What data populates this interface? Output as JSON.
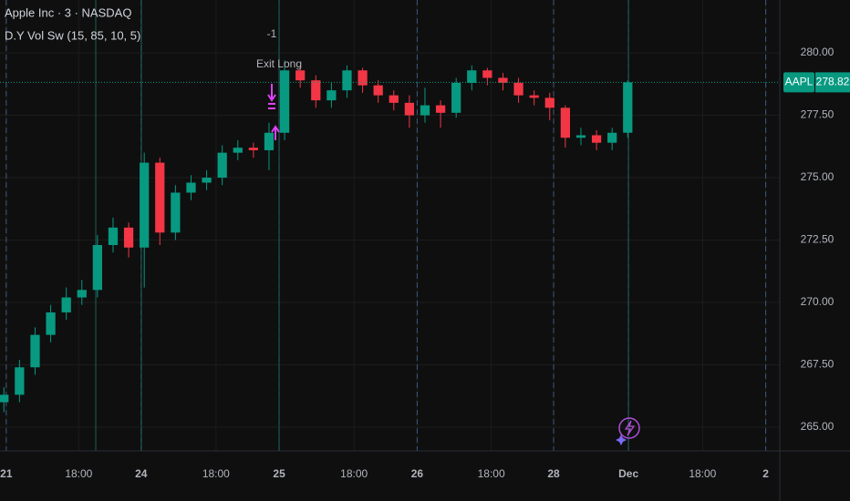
{
  "chart_data": {
    "type": "candlestick",
    "title": "Apple Inc · 3 · NASDAQ",
    "indicator": "D.Y Vol Sw (15, 85, 10, 5)",
    "annotations": [
      "-1",
      "Exit Long"
    ],
    "symbol": "AAPL",
    "last_price": 278.82,
    "up_color": "#089981",
    "down_color": "#f23645",
    "grid": true,
    "x": [
      0.5,
      2.5,
      4.5,
      6.5,
      8.5,
      10.5,
      12.5,
      14.5,
      16.5,
      18.5,
      20.5,
      22.5,
      24.5,
      26.5,
      28.5,
      30.5,
      32.5,
      34.5,
      36.5,
      38.5,
      40.5,
      42.5,
      44.5,
      46.5,
      48.5,
      50.5,
      52.5,
      54.5,
      56.5,
      58.5,
      60.5,
      62.5,
      64.5,
      66.5,
      68.5,
      70.5,
      72.5,
      74.5,
      76.5,
      78.5,
      80.5
    ],
    "open": [
      266.0,
      266.3,
      267.4,
      268.7,
      269.6,
      270.2,
      270.5,
      272.3,
      273.0,
      272.2,
      275.6,
      272.8,
      274.4,
      274.8,
      275.0,
      276.0,
      276.2,
      276.1,
      276.8,
      279.3,
      278.9,
      278.1,
      278.5,
      279.3,
      278.7,
      278.3,
      278.0,
      277.5,
      277.9,
      277.6,
      278.8,
      279.3,
      279.0,
      278.8,
      278.3,
      278.2,
      277.8,
      276.6,
      276.7,
      276.4,
      276.8
    ],
    "high": [
      266.6,
      267.7,
      269.0,
      269.9,
      270.6,
      270.9,
      272.7,
      273.4,
      273.2,
      276.0,
      275.8,
      274.7,
      275.1,
      275.3,
      276.3,
      276.5,
      276.4,
      277.2,
      279.7,
      279.5,
      279.1,
      278.8,
      279.5,
      279.4,
      278.9,
      278.5,
      278.3,
      278.6,
      278.1,
      279.0,
      279.5,
      279.4,
      279.2,
      279.0,
      278.5,
      278.4,
      277.9,
      277.0,
      276.9,
      277.0,
      278.9
    ],
    "low": [
      265.6,
      266.0,
      267.1,
      268.4,
      269.3,
      269.9,
      270.2,
      272.0,
      271.8,
      270.6,
      272.3,
      272.5,
      274.1,
      274.5,
      274.7,
      275.7,
      275.8,
      275.3,
      276.5,
      278.6,
      277.8,
      277.8,
      278.2,
      278.4,
      278.0,
      277.7,
      277.0,
      277.2,
      277.0,
      277.4,
      278.5,
      278.7,
      278.5,
      278.0,
      277.9,
      277.3,
      276.2,
      276.3,
      276.1,
      276.1,
      276.6
    ],
    "close": [
      266.3,
      267.4,
      268.7,
      269.6,
      270.2,
      270.5,
      272.3,
      273.0,
      272.2,
      275.6,
      272.8,
      274.4,
      274.8,
      275.0,
      276.0,
      276.2,
      276.1,
      276.8,
      279.3,
      278.9,
      278.1,
      278.5,
      279.3,
      278.7,
      278.3,
      278.0,
      277.5,
      277.9,
      277.6,
      278.8,
      279.3,
      279.0,
      278.8,
      278.3,
      278.2,
      277.8,
      276.6,
      276.7,
      276.4,
      276.8,
      278.82
    ],
    "xlim": [
      0,
      100
    ],
    "xticks": [
      {
        "value": 0.8,
        "label": "21"
      },
      {
        "value": 10.1,
        "label": "18:00"
      },
      {
        "value": 18.1,
        "label": "24"
      },
      {
        "value": 27.7,
        "label": "18:00"
      },
      {
        "value": 35.8,
        "label": "25"
      },
      {
        "value": 45.4,
        "label": "18:00"
      },
      {
        "value": 53.5,
        "label": "26"
      },
      {
        "value": 63.0,
        "label": "18:00"
      },
      {
        "value": 71.0,
        "label": "28"
      },
      {
        "value": 80.6,
        "label": "Dec"
      },
      {
        "value": 90.1,
        "label": "18:00"
      },
      {
        "value": 98.2,
        "label": "2"
      }
    ],
    "ylim": [
      264.05,
      282.12
    ],
    "yticks": [
      {
        "value": 265,
        "label": "265.00"
      },
      {
        "value": 267.5,
        "label": "267.50"
      },
      {
        "value": 270,
        "label": "270.00"
      },
      {
        "value": 272.5,
        "label": "272.50"
      },
      {
        "value": 275,
        "label": "275.00"
      },
      {
        "value": 277.5,
        "label": "277.50"
      },
      {
        "value": 280,
        "label": "280.00"
      }
    ]
  }
}
